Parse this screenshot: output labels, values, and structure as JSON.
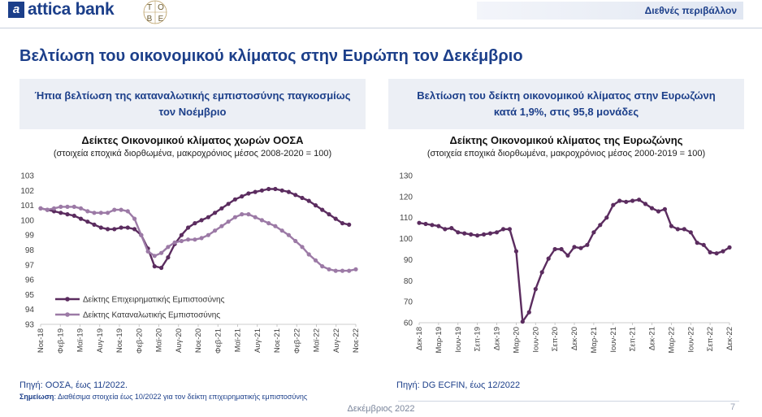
{
  "header": {
    "brand_logo_letter": "a",
    "brand_name": "attica bank",
    "tobe_letters": [
      "T",
      "O",
      "B",
      "E"
    ],
    "section_tag": "Διεθνές περιβάλλον"
  },
  "page_title": "Βελτίωση του οικονομικού κλίματος στην Ευρώπη τον Δεκέμβριο",
  "left": {
    "subhead_line1": "Ήπια βελτίωση της καταναλωτικής εμπιστοσύνης παγκοσμίως",
    "subhead_line2": "τον Νοέμβριο",
    "chart_title": "Δείκτες Οικονομικού κλίματος χωρών ΟΟΣΑ",
    "chart_subtitle": "(στοιχεία εποχικά διορθωμένα, μακροχρόνιος μέσος 2008-2020 = 100)",
    "source": "Πηγή: ΟΟΣΑ, έως 11/2022.",
    "note_label": "Σημείωση",
    "note_text": ": Διαθέσιμα στοιχεία έως 10/2022 για τον δείκτη επιχειρηματικής εμπιστοσύνης"
  },
  "right": {
    "subhead_line1": "Βελτίωση του δείκτη οικονομικού κλίματος στην Ευρωζώνη",
    "subhead_line2": "κατά 1,9%, στις 95,8 μονάδες",
    "chart_title": "Δείκτης Οικονομικού κλίματος της Ευρωζώνης",
    "chart_subtitle": "(στοιχεία εποχικά διορθωμένα, μακροχρόνιος μέσος 2000-2019 = 100)",
    "source": "Πηγή: DG ECFIN, έως 12/2022"
  },
  "footer": {
    "date": "Δεκέμβριος 2022",
    "page_number": "7"
  },
  "colors": {
    "dark_series": "#5b2c5f",
    "light_series": "#9c7aa6",
    "brand": "#1c3f8a"
  },
  "chart_data": [
    {
      "type": "line",
      "ylim": [
        93,
        103
      ],
      "yticks": [
        93,
        94,
        95,
        96,
        97,
        98,
        99,
        100,
        101,
        102,
        103
      ],
      "tick_labels": [
        "Νοε-18",
        "Φεβ-19",
        "Μαϊ-19",
        "Αυγ-19",
        "Νοε-19",
        "Φεβ-20",
        "Μαϊ-20",
        "Αυγ-20",
        "Νοε-20",
        "Φεβ-21",
        "Μαϊ-21",
        "Αυγ-21",
        "Νοε-21",
        "Φεβ-22",
        "Μαϊ-22",
        "Αυγ-22",
        "Νοε-22"
      ],
      "legend_position": "bottom-left",
      "series": [
        {
          "name": "Δείκτης Επιχειρηματικής Εμπιστοσύνης",
          "color": "#5b2c5f",
          "start_month": "Νοε-18",
          "values": [
            100.8,
            100.7,
            100.6,
            100.5,
            100.4,
            100.3,
            100.1,
            99.9,
            99.7,
            99.5,
            99.4,
            99.4,
            99.5,
            99.5,
            99.4,
            99.0,
            98.1,
            96.9,
            96.8,
            97.5,
            98.4,
            99.0,
            99.5,
            99.8,
            100.0,
            100.2,
            100.5,
            100.8,
            101.1,
            101.4,
            101.6,
            101.8,
            101.9,
            102.0,
            102.1,
            102.1,
            102.0,
            101.9,
            101.7,
            101.5,
            101.3,
            101.0,
            100.7,
            100.4,
            100.1,
            99.8,
            99.7
          ]
        },
        {
          "name": "Δείκτης Καταναλωτικής Εμπιστοσύνης",
          "color": "#9c7aa6",
          "start_month": "Νοε-18",
          "values": [
            100.8,
            100.7,
            100.8,
            100.9,
            100.9,
            100.9,
            100.8,
            100.6,
            100.5,
            100.5,
            100.5,
            100.7,
            100.7,
            100.6,
            100.1,
            99.0,
            97.9,
            97.6,
            97.8,
            98.2,
            98.5,
            98.6,
            98.7,
            98.7,
            98.8,
            99.0,
            99.3,
            99.6,
            99.9,
            100.2,
            100.4,
            100.4,
            100.2,
            100.0,
            99.8,
            99.6,
            99.3,
            99.0,
            98.6,
            98.2,
            97.7,
            97.3,
            96.9,
            96.7,
            96.6,
            96.6,
            96.6,
            96.7
          ]
        }
      ]
    },
    {
      "type": "line",
      "ylim": [
        60,
        130
      ],
      "yticks": [
        60,
        70,
        80,
        90,
        100,
        110,
        120,
        130
      ],
      "tick_labels": [
        "Δεκ-18",
        "Μαρ-19",
        "Ιουν-19",
        "Σεπ-19",
        "Δεκ-19",
        "Μαρ-20",
        "Ιουν-20",
        "Σεπ-20",
        "Δεκ-20",
        "Μαρ-21",
        "Ιουν-21",
        "Σεπ-21",
        "Δεκ-21",
        "Μαρ-22",
        "Ιουν-22",
        "Σεπ-22",
        "Δεκ-22"
      ],
      "series": [
        {
          "name": "",
          "color": "#5b2c5f",
          "start_month": "Δεκ-18",
          "values": [
            107.5,
            107.0,
            106.5,
            106.0,
            104.5,
            105.0,
            103.0,
            102.5,
            102.0,
            101.5,
            102.0,
            102.5,
            103.0,
            104.5,
            104.5,
            94.0,
            60.5,
            65.0,
            76.0,
            84.0,
            90.5,
            95.0,
            95.0,
            92.0,
            96.0,
            95.5,
            97.0,
            103.0,
            106.5,
            110.0,
            116.0,
            118.0,
            117.5,
            118.0,
            118.5,
            116.5,
            114.5,
            113.0,
            114.0,
            106.0,
            104.5,
            104.5,
            103.0,
            98.0,
            97.0,
            93.5,
            93.0,
            94.0,
            95.8
          ]
        }
      ]
    }
  ]
}
